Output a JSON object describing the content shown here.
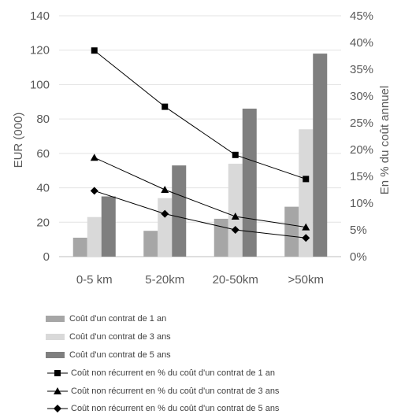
{
  "chart_data": {
    "type": "bar",
    "categories": [
      "0-5 km",
      "5-20km",
      "20-50km",
      ">50km"
    ],
    "ylabel": "EUR (000)",
    "y2label": "En % du coût annuel",
    "ylim": [
      0,
      140
    ],
    "y2lim": [
      0,
      45
    ],
    "yticks": [
      "0",
      "20",
      "40",
      "60",
      "80",
      "100",
      "120",
      "140"
    ],
    "y2ticks": [
      "0%",
      "5%",
      "10%",
      "15%",
      "20%",
      "25%",
      "30%",
      "35%",
      "40%",
      "45%"
    ],
    "grid": true,
    "legend_position": "bottom",
    "series": [
      {
        "name": "Coût d'un contrat de 1 an",
        "kind": "bar",
        "axis": "left",
        "color": "#a6a6a6",
        "values": [
          11,
          15,
          22,
          29
        ]
      },
      {
        "name": "Coût d'un contrat de 3 ans",
        "kind": "bar",
        "axis": "left",
        "color": "#d9d9d9",
        "values": [
          23,
          34,
          54,
          74
        ]
      },
      {
        "name": "Coût d'un contrat de 5 ans",
        "kind": "bar",
        "axis": "left",
        "color": "#7f7f7f",
        "values": [
          35,
          53,
          86,
          118
        ]
      },
      {
        "name": "Coût non récurrent en % du coût d'un contrat de 1 an",
        "kind": "line",
        "axis": "right",
        "marker": "square",
        "color": "#000000",
        "values": [
          38.5,
          28,
          19,
          14.5
        ]
      },
      {
        "name": "Coût non récurrent en % du coût d'un contrat de 3 ans",
        "kind": "line",
        "axis": "right",
        "marker": "triangle",
        "color": "#000000",
        "values": [
          18.5,
          12.5,
          7.5,
          5.5
        ]
      },
      {
        "name": "Coût non récurrent en % du coût d'un contrat de 5 ans",
        "kind": "line",
        "axis": "right",
        "marker": "diamond",
        "color": "#000000",
        "values": [
          12.3,
          8,
          5,
          3.5
        ]
      }
    ]
  }
}
